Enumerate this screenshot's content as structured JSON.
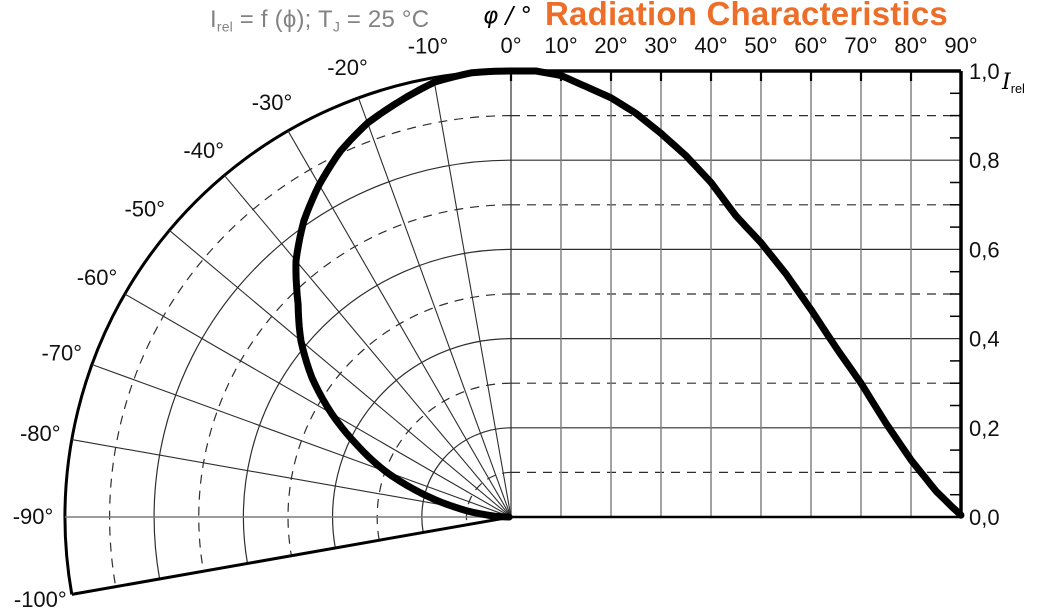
{
  "header": {
    "title": "Radiation Characteristics",
    "subtitle_parts": [
      {
        "t": "I"
      },
      {
        "t": "rel",
        "sub": true
      },
      {
        "t": " = f (ϕ); T"
      },
      {
        "t": "J",
        "sub": true
      },
      {
        "t": " = 25 °C"
      }
    ],
    "x_axis_title": "φ / °",
    "y_axis_title_parts": [
      {
        "t": "I",
        "italic": true
      },
      {
        "t": "rel",
        "sub": true
      }
    ],
    "colors": {
      "title": "#EC6E28",
      "subtitle": "#838383",
      "curve": "#000000"
    }
  },
  "chart_data": {
    "type": "line",
    "title": "Radiation Characteristics",
    "subtitle": "Irel = f (ϕ); TJ = 25 °C",
    "x_axis": {
      "label": "φ / °",
      "range_deg": [
        0,
        90
      ],
      "grid_step_deg": 10,
      "tick_labels": [
        "0°",
        "10°",
        "20°",
        "30°",
        "40°",
        "50°",
        "60°",
        "70°",
        "80°",
        "90°"
      ]
    },
    "y_axis": {
      "label": "Irel",
      "range": [
        0,
        1
      ],
      "tick_labels": [
        "1,0",
        "0,8",
        "0,6",
        "0,4",
        "0,2",
        "0,0"
      ],
      "solid_gridlines": [
        0.2,
        0.4,
        0.6,
        0.8
      ],
      "dashed_gridlines": [
        0.1,
        0.3,
        0.5,
        0.7,
        0.9
      ],
      "minor_tick_step": 0.05
    },
    "polar_axis": {
      "extent_deg": -100,
      "ray_step_deg": 10,
      "tick_labels": [
        "-10°",
        "-20°",
        "-30°",
        "-40°",
        "-50°",
        "-60°",
        "-70°",
        "-80°",
        "-90°",
        "-100°"
      ],
      "solid_arcs": [
        0.2,
        0.4,
        0.6,
        0.8,
        1.0
      ],
      "dashed_arcs": [
        0.1,
        0.3,
        0.5,
        0.7,
        0.9
      ]
    },
    "series": [
      {
        "name": "Irel",
        "x_deg": [
          0,
          5,
          10,
          15,
          20,
          25,
          30,
          35,
          40,
          45,
          50,
          55,
          60,
          65,
          70,
          75,
          80,
          85,
          88,
          90
        ],
        "values": [
          1.0,
          1.0,
          0.99,
          0.965,
          0.94,
          0.905,
          0.86,
          0.81,
          0.75,
          0.675,
          0.615,
          0.545,
          0.465,
          0.38,
          0.3,
          0.21,
          0.128,
          0.058,
          0.025,
          0.004
        ]
      }
    ],
    "grid": true,
    "legend": false
  }
}
